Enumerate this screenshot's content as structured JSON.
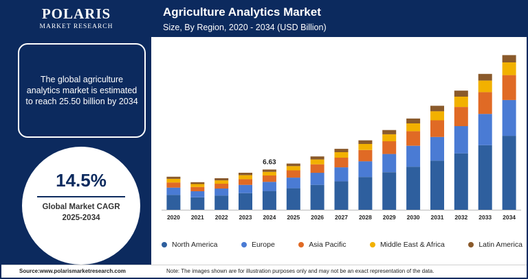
{
  "brand": {
    "name": "POLARIS",
    "tagline": "MARKET RESEARCH"
  },
  "header": {
    "title": "Agriculture Analytics Market",
    "subtitle": "Size, By Region, 2020 - 2034 (USD Billion)"
  },
  "estimate": {
    "text": "The global agriculture analytics market is estimated to reach 25.50 billion by 2034"
  },
  "cagr": {
    "value": "14.5%",
    "label_line1": "Global Market CAGR",
    "label_line2": "2025-2034"
  },
  "footer": {
    "source": "Source:www.polarismarketresearch.com",
    "note": "Note: The images shown are for illustration purposes only and may not be an exact representation of the data."
  },
  "chart_data": {
    "type": "bar",
    "stacked": true,
    "title": "Agriculture Analytics Market",
    "subtitle": "Size, By Region, 2020 - 2034 (USD Billion)",
    "xlabel": "",
    "ylabel": "",
    "ylim": [
      0,
      26
    ],
    "grid": false,
    "legend_position": "bottom",
    "categories": [
      "2020",
      "2021",
      "2022",
      "2023",
      "2024",
      "2025",
      "2026",
      "2027",
      "2028",
      "2029",
      "2030",
      "2031",
      "2032",
      "2033",
      "2034"
    ],
    "series": [
      {
        "name": "North America",
        "color": "#2e5f9e",
        "values": [
          2.45,
          2.05,
          2.35,
          2.75,
          3.1,
          3.55,
          4.1,
          4.7,
          5.4,
          6.2,
          7.1,
          8.1,
          9.3,
          10.65,
          12.2
        ]
      },
      {
        "name": "Europe",
        "color": "#4a7bd4",
        "values": [
          1.2,
          1.0,
          1.15,
          1.35,
          1.5,
          1.75,
          2.0,
          2.3,
          2.6,
          3.0,
          3.45,
          3.9,
          4.5,
          5.15,
          5.9
        ]
      },
      {
        "name": "Asia Pacific",
        "color": "#e06a25",
        "values": [
          0.85,
          0.7,
          0.8,
          0.95,
          1.05,
          1.2,
          1.4,
          1.6,
          1.85,
          2.1,
          2.4,
          2.75,
          3.15,
          3.6,
          4.1
        ]
      },
      {
        "name": "Middle East & Africa",
        "color": "#f2b100",
        "values": [
          0.6,
          0.5,
          0.55,
          0.65,
          0.6,
          0.7,
          0.8,
          0.9,
          1.0,
          1.15,
          1.3,
          1.5,
          1.7,
          1.9,
          2.1
        ]
      },
      {
        "name": "Latin America",
        "color": "#8a5a2b",
        "values": [
          0.35,
          0.3,
          0.35,
          0.4,
          0.38,
          0.42,
          0.5,
          0.55,
          0.6,
          0.7,
          0.8,
          0.9,
          1.0,
          1.1,
          1.2
        ]
      }
    ],
    "annotations": [
      {
        "category": "2024",
        "label": "6.63"
      }
    ]
  }
}
